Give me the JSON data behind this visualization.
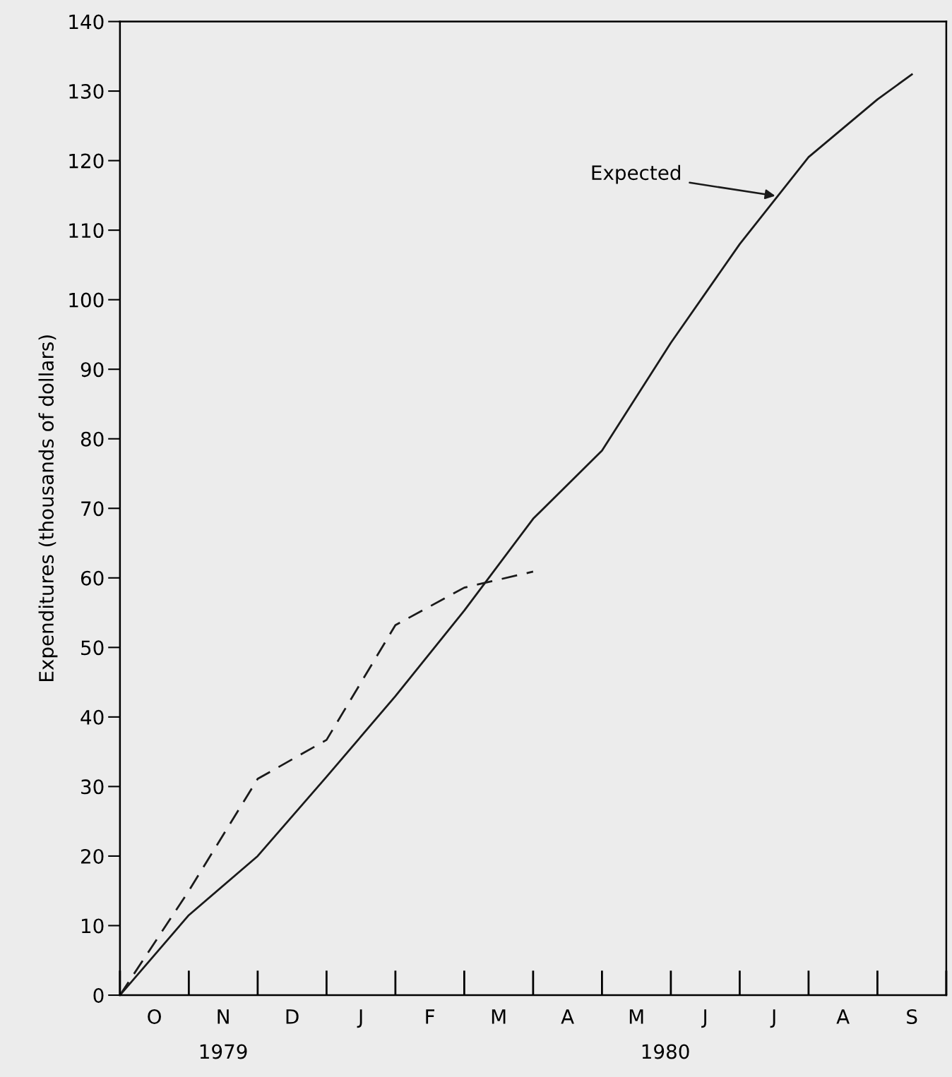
{
  "chart_data": {
    "type": "line",
    "ylabel": "Expenditures (thousands of dollars)",
    "categories": [
      null,
      "O",
      null,
      "N",
      null,
      "D",
      null,
      "J",
      null,
      "F",
      null,
      "M",
      null,
      "A",
      null,
      "M",
      null,
      "J",
      null,
      "J",
      null,
      "A",
      null,
      "S",
      null
    ],
    "series": [
      {
        "color": "#1a1a1a",
        "line_style": "solid",
        "values": [
          0,
          null,
          11.5,
          null,
          20,
          null,
          31.4,
          null,
          43,
          null,
          55.3,
          null,
          68.5,
          null,
          78.3,
          null,
          93.8,
          null,
          108,
          null,
          120.5,
          null,
          128.8,
          132.4,
          null
        ]
      },
      {
        "color": "#1a1a1a",
        "line_style": "dashed",
        "values": [
          0,
          null,
          15,
          null,
          31.1,
          null,
          36.7,
          null,
          53.2,
          null,
          58.6,
          null,
          60.9,
          null,
          null,
          null,
          null,
          null,
          null,
          null,
          null,
          null,
          null,
          null,
          null
        ]
      }
    ],
    "ylim": [
      0,
      140
    ],
    "yticks": [
      0,
      10,
      20,
      30,
      40,
      50,
      60,
      70,
      80,
      90,
      100,
      110,
      120,
      130,
      140
    ],
    "grid": false,
    "marker": "none",
    "annotations": [
      "Expected",
      "1979",
      "1980"
    ]
  }
}
